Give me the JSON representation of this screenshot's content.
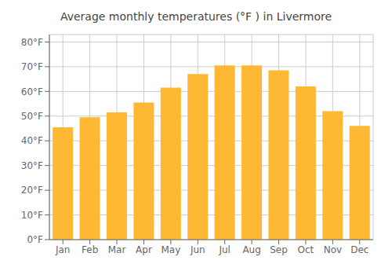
{
  "chart_data": {
    "type": "bar",
    "title": "Average monthly temperatures (°F ) in Livermore",
    "categories": [
      "Jan",
      "Feb",
      "Mar",
      "Apr",
      "May",
      "Jun",
      "Jul",
      "Aug",
      "Sep",
      "Oct",
      "Nov",
      "Dec"
    ],
    "values": [
      45.5,
      49.5,
      51.5,
      55.5,
      61.5,
      67,
      70.5,
      70.5,
      68.5,
      62,
      52,
      46
    ],
    "color": "#FFB833",
    "ylim": [
      0,
      83
    ],
    "yticks": [
      {
        "value": 0,
        "label": "0°F"
      },
      {
        "value": 10,
        "label": "10°F"
      },
      {
        "value": 20,
        "label": "20°F"
      },
      {
        "value": 30,
        "label": "30°F"
      },
      {
        "value": 40,
        "label": "40°F"
      },
      {
        "value": 50,
        "label": "50°F"
      },
      {
        "value": 60,
        "label": "60°F"
      },
      {
        "value": 70,
        "label": "70°F"
      },
      {
        "value": 80,
        "label": "80°F"
      }
    ],
    "grid": true
  }
}
